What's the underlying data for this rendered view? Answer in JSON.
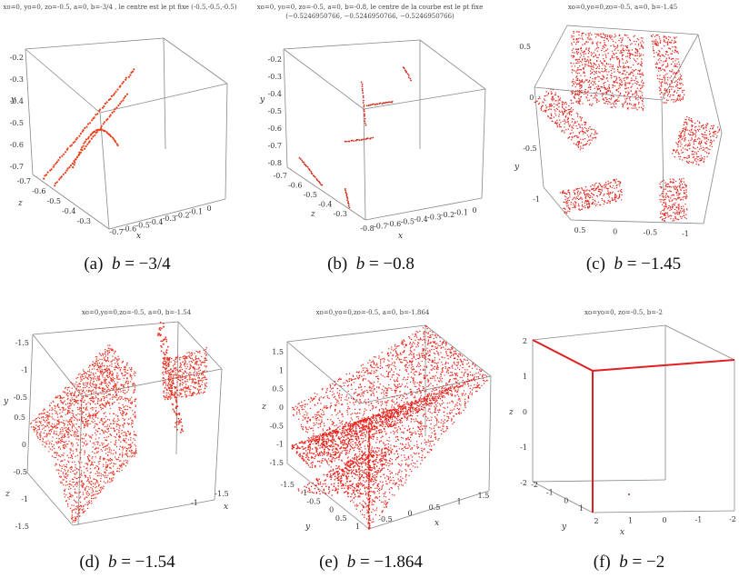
{
  "chart_data": [
    {
      "type": "scatter",
      "id": "a",
      "title": "xo=0, yo=0, zo=-0.5, a=0, b=-3/4 , le centre est le pt fixe (-0.5,-0.5,-0.5)",
      "caption_letter": "(a)",
      "caption_var": "b",
      "caption_value": "= −3/4",
      "xlabel": "x",
      "ylabel": "y",
      "zlabel": "z",
      "y_ticks": [
        "-0.2",
        "-0.3",
        "-0.4",
        "-0.5",
        "-0.6",
        "-0.7"
      ],
      "z_ticks": [
        "-0.7",
        "-0.6",
        "-0.5",
        "-0.4",
        "-0.3"
      ],
      "x_ticks": [
        "-0.7",
        "-0.6",
        "-0.5",
        "-0.4",
        "-0.3",
        "-0.2",
        "-0.1",
        "0"
      ],
      "point_color": "#e8401a"
    },
    {
      "type": "scatter",
      "id": "b",
      "title": "xo=0, yo=0, zo=-0.5, a=0, b=-0.8, le centre de la courbe est le pt fixe",
      "subtitle": "(−0.5246950766, −0.5246950766, −0.5246950766)",
      "caption_letter": "(b)",
      "caption_var": "b",
      "caption_value": "= −0.8",
      "xlabel": "x",
      "ylabel": "y",
      "zlabel": "z",
      "y_ticks": [
        "-0.2",
        "-0.3",
        "-0.4",
        "-0.5",
        "-0.6",
        "-0.7",
        "-0.8"
      ],
      "z_ticks": [
        "-0.7",
        "-0.6",
        "-0.5",
        "-0.4",
        "-0.3"
      ],
      "x_ticks": [
        "-0.8",
        "-0.7",
        "-0.6",
        "-0.5",
        "-0.4",
        "-0.3",
        "-0.2",
        "-0.1",
        "0"
      ],
      "point_color": "#d42a1a"
    },
    {
      "type": "scatter",
      "id": "c",
      "title": "xo=0,yo=0,zo=-0.5, a=0, b=-1.45",
      "caption_letter": "(c)",
      "caption_var": "b",
      "caption_value": "= −1.45",
      "xlabel": "",
      "ylabel": "y",
      "zlabel": "",
      "y_ticks": [
        "0.5",
        "0",
        "-0.5",
        "-1"
      ],
      "x_ticks": [
        "0.5",
        "0",
        "-0.5",
        "-1"
      ],
      "point_color": "#e02a22"
    },
    {
      "type": "scatter",
      "id": "d",
      "title": "xo=0,yo=0,zo=-0.5, a=0, b=-1.54",
      "caption_letter": "(d)",
      "caption_var": "b",
      "caption_value": "= −1.54",
      "xlabel": "x",
      "ylabel": "y",
      "zlabel": "z",
      "y_ticks": [
        "-1.5",
        "-1",
        "-0.5"
      ],
      "z_ticks": [
        "0.5",
        "0",
        "-0.5",
        "-1",
        "-1.5"
      ],
      "x_ticks": [
        "-1",
        "-1.5"
      ],
      "point_color": "#e83222"
    },
    {
      "type": "scatter",
      "id": "e",
      "title": "xo=0,yo=0,zo=-0.5, a=0, b=-1.864",
      "caption_letter": "(e)",
      "caption_var": "b",
      "caption_value": "= −1.864",
      "xlabel": "x",
      "ylabel": "y",
      "zlabel": "z",
      "z_ticks": [
        "1.5",
        "1",
        "0.5",
        "0",
        "-0.5",
        "-1",
        "-1.5"
      ],
      "y_ticks": [
        "-1.5",
        "-1",
        "-0.5",
        "0",
        "0.5",
        "1"
      ],
      "x_ticks": [
        "-0.5",
        "0",
        "0.5",
        "1",
        "1.5"
      ],
      "point_color": "#e8261e"
    },
    {
      "type": "scatter",
      "id": "f",
      "title": "xo=yo=0, zo=-0.5, b=-2",
      "caption_letter": "(f)",
      "caption_var": "b",
      "caption_value": "= −2",
      "xlabel": "x",
      "ylabel": "y",
      "zlabel": "z",
      "z_ticks": [
        "2",
        "1",
        "0",
        "-1",
        "-2"
      ],
      "y_ticks": [
        "-2",
        "-1",
        "0",
        "1"
      ],
      "x_ticks": [
        "2",
        "1",
        "0",
        "-1",
        "-2"
      ],
      "point_color": "#e02020"
    }
  ]
}
